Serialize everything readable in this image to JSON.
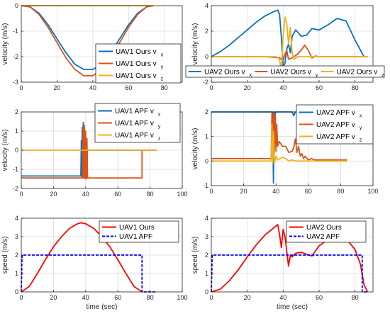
{
  "chart_data": [
    {
      "type": "line",
      "xlim": [
        0,
        90
      ],
      "ylim": [
        -3,
        0
      ],
      "xticks": [
        0,
        20,
        40,
        60,
        80
      ],
      "yticks": [
        0,
        -1,
        -2,
        -3
      ],
      "ylabel": "velocity (m/s)",
      "xlabel": "",
      "grid": true,
      "legend": "bottom-right",
      "series": [
        {
          "label": "UAV1 Ours v",
          "sub": "x",
          "color": "#0072BD",
          "x": [
            0,
            5,
            10,
            15,
            20,
            25,
            30,
            35,
            40,
            45,
            50,
            55,
            60,
            65,
            70,
            74
          ],
          "y": [
            0,
            -0.05,
            -0.3,
            -0.75,
            -1.3,
            -1.85,
            -2.3,
            -2.5,
            -2.5,
            -2.3,
            -1.85,
            -1.3,
            -0.75,
            -0.3,
            -0.05,
            0
          ]
        },
        {
          "label": "UAV1 Ours v",
          "sub": "y",
          "color": "#D95319",
          "x": [
            0,
            5,
            10,
            15,
            20,
            25,
            30,
            35,
            40,
            45,
            50,
            55,
            60,
            65,
            70,
            74
          ],
          "y": [
            0,
            -0.05,
            -0.35,
            -0.85,
            -1.45,
            -2.05,
            -2.5,
            -2.75,
            -2.75,
            -2.5,
            -2.05,
            -1.45,
            -0.85,
            -0.35,
            -0.05,
            0
          ]
        },
        {
          "label": "UAV1 Ours v",
          "sub": "z",
          "color": "#EDB120",
          "x": [
            0,
            74
          ],
          "y": [
            0,
            0
          ]
        }
      ]
    },
    {
      "type": "line",
      "xlim": [
        0,
        90
      ],
      "ylim": [
        -2,
        4
      ],
      "xticks": [
        0,
        20,
        40,
        60,
        80
      ],
      "yticks": [
        4,
        2,
        0,
        -2
      ],
      "ylabel": "velocity (m/s)",
      "xlabel": "",
      "grid": true,
      "legend": "bottom",
      "series": [
        {
          "label": "UAV2 Ours v",
          "sub": "x",
          "color": "#0072BD",
          "x": [
            0,
            5,
            10,
            15,
            20,
            25,
            30,
            35,
            37,
            38,
            39,
            40,
            41,
            42,
            43,
            44,
            45,
            47,
            50,
            53,
            56,
            60,
            65,
            70,
            75,
            80,
            85,
            87
          ],
          "y": [
            0,
            0.4,
            0.9,
            1.5,
            2.1,
            2.7,
            3.2,
            3.55,
            3.65,
            3.3,
            1.5,
            -0.8,
            -0.5,
            0.6,
            1.0,
            0.3,
            1.6,
            2.1,
            1.6,
            1.7,
            2.2,
            2.1,
            2.5,
            3.0,
            2.8,
            1.3,
            0,
            0
          ]
        },
        {
          "label": "UAV2 Ours v",
          "sub": "y",
          "color": "#D95319",
          "x": [
            0,
            30,
            35,
            38,
            40,
            41,
            42,
            43,
            45,
            48,
            50,
            52,
            54,
            56,
            58,
            60,
            87
          ],
          "y": [
            0,
            0,
            -0.05,
            -0.1,
            -0.3,
            0.2,
            0.5,
            -0.2,
            -0.1,
            0.2,
            0.5,
            0.9,
            0.5,
            -0.1,
            0.05,
            0,
            0
          ]
        },
        {
          "label": "UAV2 Ours v",
          "sub": "z",
          "color": "#EDB120",
          "x": [
            0,
            36,
            38,
            39,
            40,
            41,
            42,
            43,
            44,
            45,
            46,
            48,
            87
          ],
          "y": [
            0,
            0,
            -0.2,
            -1.2,
            1.6,
            3.1,
            2.6,
            1.0,
            2.3,
            0.3,
            -0.2,
            0,
            0
          ]
        }
      ]
    },
    {
      "type": "line",
      "xlim": [
        0,
        100
      ],
      "ylim": [
        -2,
        2
      ],
      "xticks": [
        0,
        20,
        40,
        60,
        80,
        100
      ],
      "yticks": [
        2,
        1,
        0,
        -1,
        -2
      ],
      "ylabel": "velocity (m/s)",
      "xlabel": "",
      "grid": true,
      "legend": "top-right",
      "series": [
        {
          "label": "UAV1 APF v",
          "sub": "x",
          "color": "#0072BD",
          "x": [
            0,
            37,
            37.3,
            37.6,
            37.9,
            38.2,
            38.5,
            38.8,
            39.1,
            39.4,
            39.7,
            40,
            40.3,
            40.6,
            40.9,
            41,
            84
          ],
          "y": [
            -1.35,
            -1.35,
            0.5,
            -1.4,
            1.2,
            -1.4,
            1.45,
            -1.45,
            1.3,
            -1.4,
            1.0,
            -1.4,
            0.6,
            -1.4,
            -1.35,
            0,
            0
          ]
        },
        {
          "label": "UAV1 APF v",
          "sub": "y",
          "color": "#D95319",
          "x": [
            0,
            38,
            38.4,
            38.8,
            39.2,
            39.6,
            40,
            40.4,
            40.8,
            41.2,
            41.6,
            42,
            75,
            75.01,
            84
          ],
          "y": [
            -1.45,
            -1.45,
            1.3,
            -1.45,
            1.2,
            -1.5,
            1.0,
            -1.5,
            0.6,
            -1.45,
            -1.45,
            -1.45,
            -1.45,
            0,
            0
          ]
        },
        {
          "label": "UAV1 APF v",
          "sub": "z",
          "color": "#EDB120",
          "x": [
            0,
            84
          ],
          "y": [
            0,
            0
          ]
        }
      ]
    },
    {
      "type": "line",
      "xlim": [
        0,
        100
      ],
      "ylim": [
        -1,
        2
      ],
      "xticks": [
        0,
        20,
        40,
        60,
        80,
        100
      ],
      "yticks": [
        2,
        1,
        0,
        -1
      ],
      "ylabel": "velocity (m/s)",
      "xlabel": "",
      "grid": true,
      "legend": "top-right",
      "series": [
        {
          "label": "UAV2 APF v",
          "sub": "x",
          "color": "#0072BD",
          "x": [
            0,
            38,
            38.4,
            38.8,
            39.2,
            39.6,
            40,
            50,
            51,
            52,
            84
          ],
          "y": [
            2,
            2,
            -0.9,
            2,
            1.0,
            2,
            2,
            2,
            1.85,
            2,
            2
          ]
        },
        {
          "label": "UAV2 APF v",
          "sub": "y",
          "color": "#D95319",
          "x": [
            0,
            37,
            37.5,
            38,
            38.5,
            39,
            39.5,
            40,
            40.5,
            41,
            42,
            44,
            46,
            48,
            50,
            51,
            52,
            53,
            54,
            55,
            56,
            57,
            58,
            60,
            62,
            64,
            84
          ],
          "y": [
            0.1,
            0.1,
            2.0,
            0.2,
            2.0,
            0.3,
            1.9,
            0.4,
            1.5,
            0.6,
            0.8,
            0.6,
            0.6,
            0.35,
            0.4,
            0.55,
            0.9,
            0.35,
            0.6,
            0.2,
            0.3,
            0.1,
            0.2,
            0.05,
            0.1,
            0.05,
            0.05
          ]
        },
        {
          "label": "UAV2 APF v",
          "sub": "z",
          "color": "#EDB120",
          "x": [
            0,
            37,
            37.5,
            38,
            38.5,
            39,
            40,
            41,
            44,
            46,
            48,
            50,
            52,
            84
          ],
          "y": [
            0,
            0,
            1.5,
            -0.1,
            1.2,
            -0.05,
            0.2,
            0.05,
            0.15,
            0.1,
            0,
            0.05,
            0,
            0
          ]
        }
      ]
    },
    {
      "type": "line",
      "xlim": [
        0,
        100
      ],
      "ylim": [
        0,
        4
      ],
      "xticks": [
        0,
        20,
        40,
        60,
        80,
        100
      ],
      "yticks": [
        4,
        3,
        2,
        1,
        0
      ],
      "ylabel": "speed (m/s)",
      "xlabel": "time (sec)",
      "grid": true,
      "legend": "top-right",
      "series": [
        {
          "label": "UAV1 Ours",
          "sub": "",
          "color": "#FF0000",
          "dash": "",
          "x": [
            0,
            5,
            10,
            15,
            20,
            25,
            30,
            35,
            37,
            40,
            45,
            50,
            55,
            60,
            65,
            70,
            75
          ],
          "y": [
            0,
            0.3,
            1.0,
            1.75,
            2.45,
            3.0,
            3.45,
            3.7,
            3.75,
            3.7,
            3.45,
            3.0,
            2.45,
            1.75,
            1.0,
            0.3,
            0
          ]
        },
        {
          "label": "UAV1 APF",
          "sub": "",
          "color": "#0000FF",
          "dash": "4,2",
          "x": [
            0,
            0.5,
            75,
            75.01,
            84
          ],
          "y": [
            0,
            2,
            2,
            0,
            0
          ]
        }
      ]
    },
    {
      "type": "line",
      "xlim": [
        0,
        90
      ],
      "ylim": [
        0,
        4
      ],
      "xticks": [
        0,
        20,
        40,
        60,
        80
      ],
      "yticks": [
        4,
        3,
        2,
        1,
        0
      ],
      "ylabel": "speed (m/s)",
      "xlabel": "time (sec)",
      "grid": true,
      "legend": "top-right",
      "series": [
        {
          "label": "UAV2 Ours",
          "sub": "",
          "color": "#FF0000",
          "dash": "",
          "x": [
            0,
            5,
            10,
            15,
            20,
            25,
            30,
            35,
            37,
            38,
            39,
            40,
            41,
            42,
            43,
            44,
            45,
            47,
            50,
            53,
            56,
            60,
            65,
            70,
            75,
            80,
            83,
            85,
            87
          ],
          "y": [
            0,
            0.15,
            0.6,
            1.2,
            1.9,
            2.55,
            3.1,
            3.5,
            3.65,
            3.1,
            2.4,
            3.4,
            3.0,
            2.2,
            1.4,
            2.0,
            1.9,
            2.1,
            2.15,
            2.05,
            1.95,
            2.5,
            2.85,
            3.05,
            2.9,
            2.3,
            1.5,
            0.4,
            0
          ]
        },
        {
          "label": "UAV2 APF",
          "sub": "",
          "color": "#0000FF",
          "dash": "4,2",
          "x": [
            0,
            0.5,
            84,
            84.01,
            87
          ],
          "y": [
            0,
            2,
            2,
            0,
            0
          ]
        }
      ]
    }
  ]
}
